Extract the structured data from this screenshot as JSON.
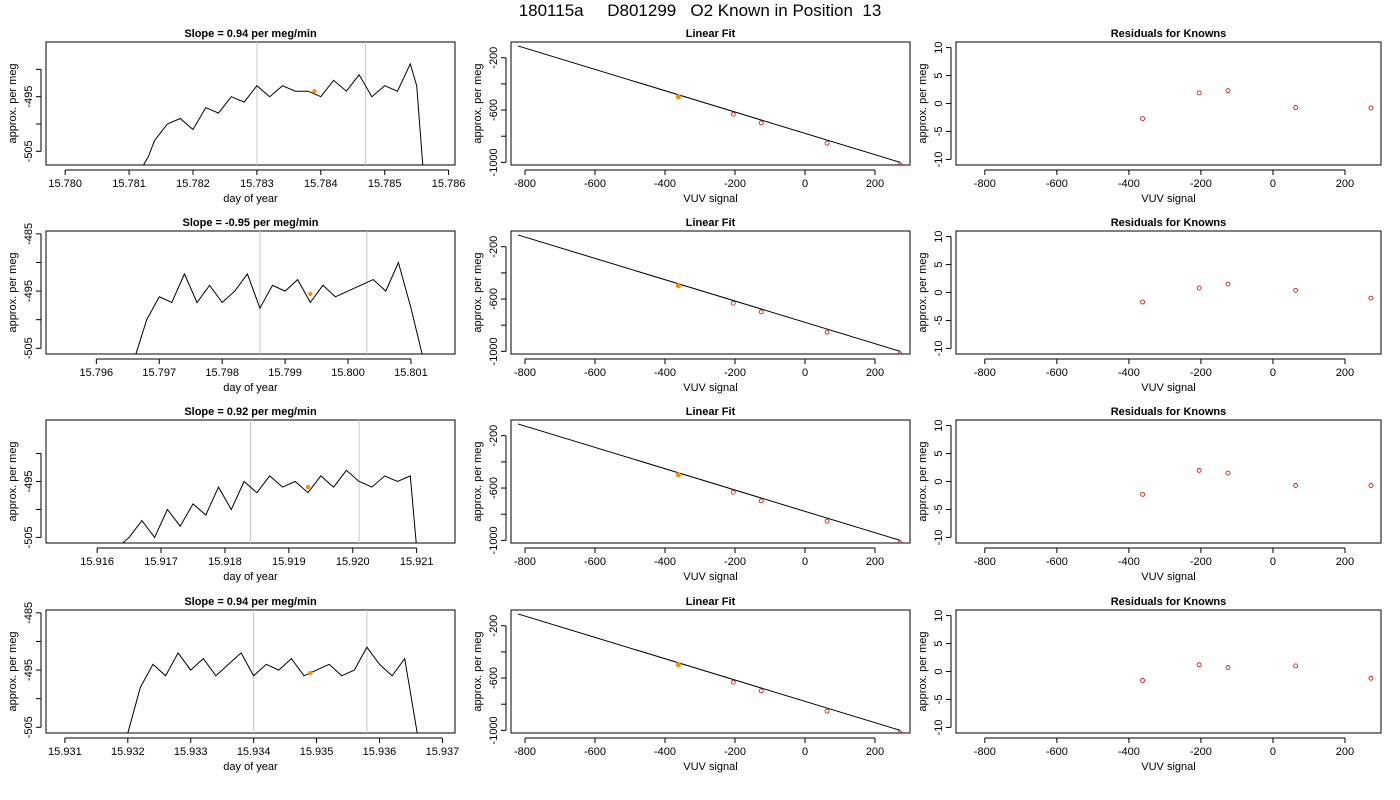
{
  "page": {
    "title": "180115a     D801299   O2 Known in Position  13"
  },
  "colors": {
    "trace": "#000000",
    "marker": "#ff8c00",
    "residual": "#cc0000",
    "vline": "#c8c8c8",
    "axis": "#000000"
  },
  "chart_data": [
    {
      "type": "line",
      "title": "Slope =  0.94  per meg/min",
      "xlabel": "day of year",
      "ylabel": "approx. per meg",
      "xlim": [
        15.7797,
        15.7861
      ],
      "ylim": [
        -507.5,
        -485
      ],
      "x_ticks": [
        "15.780",
        "15.781",
        "15.782",
        "15.783",
        "15.784",
        "15.785",
        "15.786"
      ],
      "x_tick_values": [
        15.78,
        15.781,
        15.782,
        15.783,
        15.784,
        15.785,
        15.786
      ],
      "y_ticks": [
        "-495",
        "-505"
      ],
      "y_tick_values": [
        -495,
        -505
      ],
      "y_minor": [
        -490,
        -500
      ],
      "vlines": [
        15.783,
        15.7847
      ],
      "highlight_point": {
        "x": 15.7839,
        "y": -494
      },
      "series": [
        {
          "x": [
            15.7812,
            15.7813,
            15.7814,
            15.7816,
            15.7818,
            15.782,
            15.7822,
            15.7824,
            15.7826,
            15.7828,
            15.783,
            15.7832,
            15.7834,
            15.7836,
            15.7838,
            15.784,
            15.7842,
            15.7844,
            15.7846,
            15.7848,
            15.785,
            15.7852,
            15.7854,
            15.7855,
            15.7856
          ],
          "y": [
            -508,
            -506,
            -503,
            -500,
            -499,
            -501,
            -497,
            -498,
            -495,
            -496,
            -493,
            -495,
            -493,
            -494,
            -494,
            -495,
            -492,
            -494,
            -491,
            -495,
            -493,
            -494,
            -489,
            -493,
            -508
          ]
        }
      ]
    },
    {
      "type": "line",
      "title": "Slope =  -0.95  per meg/min",
      "xlabel": "day of year",
      "ylabel": "approx. per meg",
      "xlim": [
        15.7952,
        15.8017
      ],
      "ylim": [
        -506,
        -484.5
      ],
      "x_ticks": [
        "15.796",
        "15.797",
        "15.798",
        "15.799",
        "15.800",
        "15.801"
      ],
      "x_tick_values": [
        15.796,
        15.797,
        15.798,
        15.799,
        15.8,
        15.801
      ],
      "y_ticks": [
        "-485",
        "-495",
        "-505"
      ],
      "y_tick_values": [
        -485,
        -495,
        -505
      ],
      "y_minor": [
        -490,
        -500
      ],
      "vlines": [
        15.7986,
        15.8003
      ],
      "highlight_point": {
        "x": 15.7994,
        "y": -495.5
      },
      "series": [
        {
          "x": [
            15.7966,
            15.7968,
            15.797,
            15.7972,
            15.7974,
            15.7976,
            15.7978,
            15.798,
            15.7982,
            15.7984,
            15.7986,
            15.7988,
            15.799,
            15.7992,
            15.7994,
            15.7996,
            15.7998,
            15.8,
            15.8002,
            15.8004,
            15.8006,
            15.8008,
            15.801,
            15.8012
          ],
          "y": [
            -507,
            -500,
            -496,
            -497,
            -492,
            -497,
            -494,
            -497,
            -495,
            -492,
            -498,
            -494,
            -495,
            -493,
            -497,
            -494,
            -496,
            -495,
            -494,
            -493,
            -495,
            -490,
            -498,
            -507
          ]
        }
      ]
    },
    {
      "type": "line",
      "title": "Slope =  0.92  per meg/min",
      "xlabel": "day of year",
      "ylabel": "approx. per meg",
      "xlim": [
        15.9152,
        15.9216
      ],
      "ylim": [
        -506,
        -484
      ],
      "x_ticks": [
        "15.916",
        "15.917",
        "15.918",
        "15.919",
        "15.920",
        "15.921"
      ],
      "x_tick_values": [
        15.916,
        15.917,
        15.918,
        15.919,
        15.92,
        15.921
      ],
      "y_ticks": [
        "-495",
        "-505"
      ],
      "y_tick_values": [
        -495,
        -505
      ],
      "y_minor": [
        -490,
        -500
      ],
      "vlines": [
        15.9184,
        15.9201
      ],
      "highlight_point": {
        "x": 15.9193,
        "y": -496
      },
      "series": [
        {
          "x": [
            15.9163,
            15.9165,
            15.9167,
            15.9169,
            15.9171,
            15.9173,
            15.9175,
            15.9177,
            15.9179,
            15.9181,
            15.9183,
            15.9185,
            15.9187,
            15.9189,
            15.9191,
            15.9193,
            15.9195,
            15.9197,
            15.9199,
            15.9201,
            15.9203,
            15.9205,
            15.9207,
            15.9209,
            15.921
          ],
          "y": [
            -507,
            -505,
            -502,
            -505,
            -500,
            -503,
            -499,
            -501,
            -496,
            -500,
            -495,
            -497,
            -494,
            -496,
            -495,
            -497,
            -494,
            -496,
            -493,
            -495,
            -496,
            -494,
            -495,
            -494,
            -507
          ]
        }
      ]
    },
    {
      "type": "line",
      "title": "Slope =  0.94  per meg/min",
      "xlabel": "day of year",
      "ylabel": "approx. per meg",
      "xlim": [
        15.9307,
        15.9372
      ],
      "ylim": [
        -506,
        -484.5
      ],
      "x_ticks": [
        "15.931",
        "15.932",
        "15.933",
        "15.934",
        "15.935",
        "15.936",
        "15.937"
      ],
      "x_tick_values": [
        15.931,
        15.932,
        15.933,
        15.934,
        15.935,
        15.936,
        15.937
      ],
      "y_ticks": [
        "-485",
        "-495",
        "-505"
      ],
      "y_tick_values": [
        -485,
        -495,
        -505
      ],
      "y_minor": [
        -490,
        -500
      ],
      "vlines": [
        15.934,
        15.9358
      ],
      "highlight_point": {
        "x": 15.9349,
        "y": -495.5
      },
      "series": [
        {
          "x": [
            15.932,
            15.9322,
            15.9324,
            15.9326,
            15.9328,
            15.933,
            15.9332,
            15.9334,
            15.9336,
            15.9338,
            15.934,
            15.9342,
            15.9344,
            15.9346,
            15.9348,
            15.935,
            15.9352,
            15.9354,
            15.9356,
            15.9358,
            15.936,
            15.9362,
            15.9364,
            15.9366
          ],
          "y": [
            -506,
            -498,
            -494,
            -496,
            -492,
            -495,
            -493,
            -496,
            -494,
            -492,
            -496,
            -494,
            -495,
            -493,
            -496,
            -495,
            -494,
            -496,
            -495,
            -491,
            -494,
            -496,
            -493,
            -506
          ]
        }
      ]
    },
    {
      "type": "scatter",
      "title": "Linear Fit",
      "xlabel": "VUV signal",
      "ylabel": "approx. per meg",
      "xlim": [
        -840,
        300
      ],
      "ylim": [
        -1020,
        -80
      ],
      "x_ticks": [
        "-800",
        "-600",
        "-400",
        "-200",
        "0",
        "200"
      ],
      "x_tick_values": [
        -800,
        -600,
        -400,
        -200,
        0,
        200
      ],
      "y_ticks": [
        "-200",
        "-600",
        "-1000"
      ],
      "y_tick_values": [
        -200,
        -600,
        -1000
      ],
      "y_minor": [
        -400,
        -800
      ],
      "fit_line": {
        "x": [
          -820,
          272
        ],
        "y": [
          -110,
          -1000
        ]
      },
      "points": {
        "x": [
          -362,
          -205,
          -125,
          63,
          272
        ],
        "y": [
          -498,
          -632,
          -698,
          -853,
          -1020
        ]
      },
      "highlight_index": 0
    },
    {
      "type": "scatter",
      "title": "Linear Fit",
      "xlabel": "VUV signal",
      "ylabel": "approx. per meg",
      "xlim": [
        -840,
        300
      ],
      "ylim": [
        -1020,
        -80
      ],
      "x_ticks": [
        "-800",
        "-600",
        "-400",
        "-200",
        "0",
        "200"
      ],
      "x_tick_values": [
        -800,
        -600,
        -400,
        -200,
        0,
        200
      ],
      "y_ticks": [
        "-200",
        "-600",
        "-1000"
      ],
      "y_tick_values": [
        -200,
        -600,
        -1000
      ],
      "y_minor": [
        -400,
        -800
      ],
      "fit_line": {
        "x": [
          -820,
          272
        ],
        "y": [
          -110,
          -1000
        ]
      },
      "points": {
        "x": [
          -362,
          -205,
          -125,
          63,
          272
        ],
        "y": [
          -498,
          -632,
          -698,
          -853,
          -1020
        ]
      },
      "highlight_index": 0
    },
    {
      "type": "scatter",
      "title": "Linear Fit",
      "xlabel": "VUV signal",
      "ylabel": "approx. per meg",
      "xlim": [
        -840,
        300
      ],
      "ylim": [
        -1020,
        -80
      ],
      "x_ticks": [
        "-800",
        "-600",
        "-400",
        "-200",
        "0",
        "200"
      ],
      "x_tick_values": [
        -800,
        -600,
        -400,
        -200,
        0,
        200
      ],
      "y_ticks": [
        "-200",
        "-600",
        "-1000"
      ],
      "y_tick_values": [
        -200,
        -600,
        -1000
      ],
      "y_minor": [
        -400,
        -800
      ],
      "fit_line": {
        "x": [
          -820,
          272
        ],
        "y": [
          -110,
          -1000
        ]
      },
      "points": {
        "x": [
          -362,
          -205,
          -125,
          63,
          272
        ],
        "y": [
          -498,
          -632,
          -698,
          -853,
          -1020
        ]
      },
      "highlight_index": 0
    },
    {
      "type": "scatter",
      "title": "Linear Fit",
      "xlabel": "VUV signal",
      "ylabel": "approx. per meg",
      "xlim": [
        -840,
        300
      ],
      "ylim": [
        -1020,
        -80
      ],
      "x_ticks": [
        "-800",
        "-600",
        "-400",
        "-200",
        "0",
        "200"
      ],
      "x_tick_values": [
        -800,
        -600,
        -400,
        -200,
        0,
        200
      ],
      "y_ticks": [
        "-200",
        "-600",
        "-1000"
      ],
      "y_tick_values": [
        -200,
        -600,
        -1000
      ],
      "y_minor": [
        -400,
        -800
      ],
      "fit_line": {
        "x": [
          -820,
          272
        ],
        "y": [
          -110,
          -1000
        ]
      },
      "points": {
        "x": [
          -362,
          -205,
          -125,
          63,
          272
        ],
        "y": [
          -498,
          -632,
          -698,
          -853,
          -1020
        ]
      },
      "highlight_index": 0
    },
    {
      "type": "scatter",
      "title": "Residuals for Knowns",
      "xlabel": "VUV signal",
      "ylabel": "approx. per meg",
      "xlim": [
        -880,
        300
      ],
      "ylim": [
        -11,
        11
      ],
      "x_ticks": [
        "-800",
        "-600",
        "-400",
        "-200",
        "0",
        "200"
      ],
      "x_tick_values": [
        -800,
        -600,
        -400,
        -200,
        0,
        200
      ],
      "y_ticks": [
        "10",
        "5",
        "0",
        "-5",
        "-10"
      ],
      "y_tick_values": [
        10,
        5,
        0,
        -5,
        -10
      ],
      "points": {
        "x": [
          -362,
          -205,
          -125,
          63,
          272
        ],
        "y": [
          -2.7,
          1.9,
          2.3,
          -0.7,
          -0.8
        ]
      }
    },
    {
      "type": "scatter",
      "title": "Residuals for Knowns",
      "xlabel": "VUV signal",
      "ylabel": "approx. per meg",
      "xlim": [
        -880,
        300
      ],
      "ylim": [
        -11,
        11
      ],
      "x_ticks": [
        "-800",
        "-600",
        "-400",
        "-200",
        "0",
        "200"
      ],
      "x_tick_values": [
        -800,
        -600,
        -400,
        -200,
        0,
        200
      ],
      "y_ticks": [
        "10",
        "5",
        "0",
        "-5",
        "-10"
      ],
      "y_tick_values": [
        10,
        5,
        0,
        -5,
        -10
      ],
      "points": {
        "x": [
          -362,
          -205,
          -125,
          63,
          272
        ],
        "y": [
          -1.7,
          0.8,
          1.5,
          0.4,
          -1.0
        ]
      }
    },
    {
      "type": "scatter",
      "title": "Residuals for Knowns",
      "xlabel": "VUV signal",
      "ylabel": "approx. per meg",
      "xlim": [
        -880,
        300
      ],
      "ylim": [
        -11,
        11
      ],
      "x_ticks": [
        "-800",
        "-600",
        "-400",
        "-200",
        "0",
        "200"
      ],
      "x_tick_values": [
        -800,
        -600,
        -400,
        -200,
        0,
        200
      ],
      "y_ticks": [
        "10",
        "5",
        "0",
        "-5",
        "-10"
      ],
      "y_tick_values": [
        10,
        5,
        0,
        -5,
        -10
      ],
      "points": {
        "x": [
          -362,
          -205,
          -125,
          63,
          272
        ],
        "y": [
          -2.3,
          2.0,
          1.5,
          -0.7,
          -0.7
        ]
      }
    },
    {
      "type": "scatter",
      "title": "Residuals for Knowns",
      "xlabel": "VUV signal",
      "ylabel": "approx. per meg",
      "xlim": [
        -880,
        300
      ],
      "ylim": [
        -11,
        11
      ],
      "x_ticks": [
        "-800",
        "-600",
        "-400",
        "-200",
        "0",
        "200"
      ],
      "x_tick_values": [
        -800,
        -600,
        -400,
        -200,
        0,
        200
      ],
      "y_ticks": [
        "10",
        "5",
        "0",
        "-5",
        "-10"
      ],
      "y_tick_values": [
        10,
        5,
        0,
        -5,
        -10
      ],
      "points": {
        "x": [
          -362,
          -205,
          -125,
          63,
          272
        ],
        "y": [
          -1.6,
          1.2,
          0.7,
          1.0,
          -1.2
        ]
      }
    }
  ]
}
